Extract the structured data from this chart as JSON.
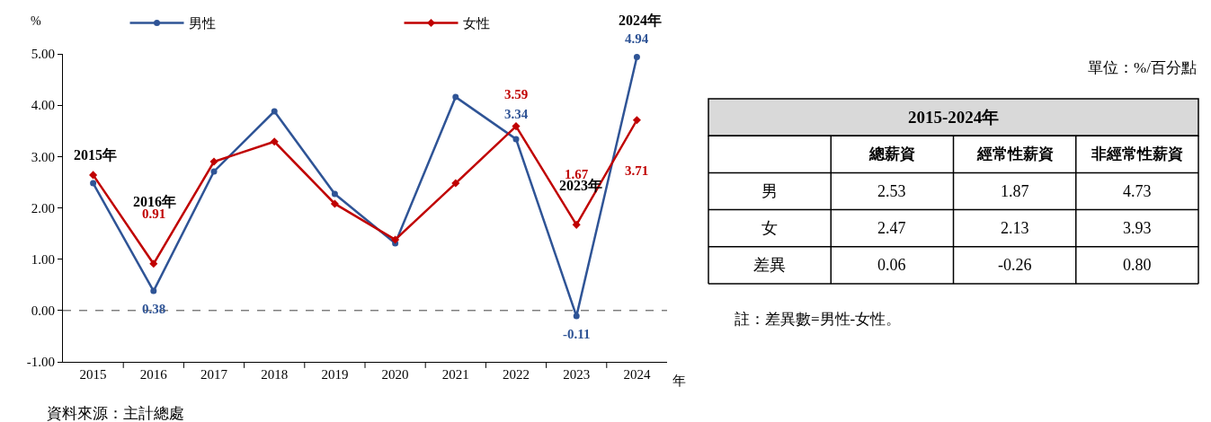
{
  "chart_data": [
    {
      "type": "line",
      "ylabel": "%",
      "xlabel": "年",
      "categories": [
        "2015",
        "2016",
        "2017",
        "2018",
        "2019",
        "2020",
        "2021",
        "2022",
        "2023",
        "2024"
      ],
      "series": [
        {
          "name": "男性",
          "color": "#2f5496",
          "marker": "circle",
          "values": [
            2.48,
            0.38,
            2.71,
            3.88,
            2.27,
            1.31,
            4.16,
            3.34,
            -0.11,
            4.94
          ],
          "value_labels": [
            null,
            "0.38",
            null,
            null,
            null,
            null,
            null,
            "3.34",
            "-0.11",
            "4.94"
          ]
        },
        {
          "name": "女性",
          "color": "#c00000",
          "marker": "diamond",
          "values": [
            2.64,
            0.91,
            2.9,
            3.29,
            2.08,
            1.38,
            2.48,
            3.59,
            1.67,
            3.71
          ],
          "value_labels": [
            null,
            "0.91",
            null,
            null,
            null,
            null,
            null,
            "3.59",
            "1.67",
            "3.71"
          ]
        }
      ],
      "ylim": [
        -1,
        5
      ],
      "yticks": [
        {
          "value": -1,
          "label": "-1.00"
        },
        {
          "value": 0,
          "label": "0.00"
        },
        {
          "value": 1,
          "label": "1.00"
        },
        {
          "value": 2,
          "label": "2.00"
        },
        {
          "value": 3,
          "label": "3.00"
        },
        {
          "value": 4,
          "label": "4.00"
        },
        {
          "value": 5,
          "label": "5.00"
        }
      ],
      "ref_lines": [
        {
          "axis": "y",
          "value": 0,
          "color": "#404040",
          "line_style": "dashed"
        }
      ],
      "annotations": [
        "2015年",
        "2016年",
        "2023年",
        "2024年",
        "資料來源：主計總處"
      ],
      "legend": "top",
      "line_style": "solid"
    },
    {
      "type": "heatmap",
      "title": "2015-2024年",
      "subtitle": "單位：%/百分點",
      "categories": [
        "總薪資",
        "經常性薪資",
        "非經常性薪資"
      ],
      "y_categories": [
        "男",
        "女",
        "差異"
      ],
      "cells": [
        [
          2.53,
          1.87,
          4.73
        ],
        [
          2.47,
          2.13,
          3.93
        ],
        [
          0.06,
          -0.26,
          0.8
        ]
      ],
      "cell_labels": [
        [
          "2.53",
          "1.87",
          "4.73"
        ],
        [
          "2.47",
          "2.13",
          "3.93"
        ],
        [
          "0.06",
          "-0.26",
          "0.80"
        ]
      ],
      "data_labels": true,
      "annotations": [
        "註：差異數=男性-女性。"
      ]
    }
  ]
}
